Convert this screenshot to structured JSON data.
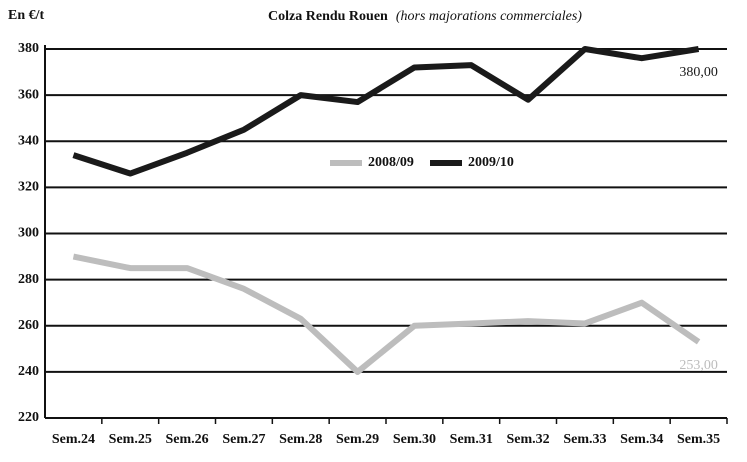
{
  "chart_data": {
    "type": "line",
    "title": "Colza Rendu Rouen",
    "subtitle": "(hors majorations commerciales)",
    "y_label": "En €/t",
    "categories": [
      "Sem.24",
      "Sem.25",
      "Sem.26",
      "Sem.27",
      "Sem.28",
      "Sem.29",
      "Sem.30",
      "Sem.31",
      "Sem.32",
      "Sem.33",
      "Sem.34",
      "Sem.35"
    ],
    "series": [
      {
        "name": "2008/09",
        "color": "#bdbdbd",
        "values": [
          290,
          285,
          285,
          276,
          263,
          240,
          260,
          261,
          262,
          261,
          270,
          253
        ],
        "value_labels": [
          null,
          null,
          null,
          null,
          null,
          null,
          null,
          null,
          null,
          null,
          null,
          "253,00"
        ]
      },
      {
        "name": "2009/10",
        "color": "#1a1a1a",
        "values": [
          334,
          326,
          335,
          345,
          360,
          357,
          372,
          373,
          358,
          380,
          376,
          380
        ],
        "value_labels": [
          null,
          null,
          null,
          null,
          null,
          null,
          null,
          null,
          null,
          null,
          null,
          "380,00"
        ]
      }
    ],
    "ylim": [
      220,
      380
    ],
    "yticks": [
      220,
      240,
      260,
      280,
      300,
      320,
      340,
      360,
      380
    ],
    "grid": true,
    "legend": "center"
  }
}
